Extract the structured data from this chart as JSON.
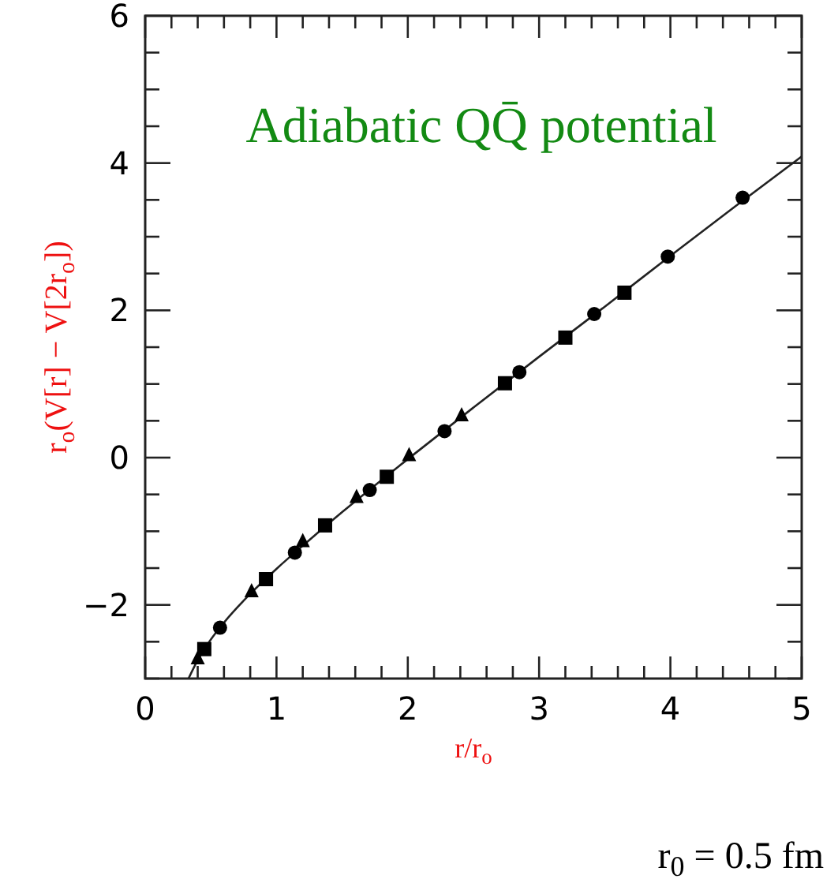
{
  "chart_data": {
    "type": "scatter",
    "title": "Adiabatic QQ̄ potential",
    "xlabel": "r/r$_{o}$",
    "ylabel": "r$_{o}$(V[r] − V[2r$_{o}$])",
    "annotations": [
      "r$_{0}$ = 0.5 fm"
    ],
    "xlim": [
      0,
      5
    ],
    "ylim": [
      -3,
      6
    ],
    "xticks": [
      0,
      {
        "value": 0.2,
        "label": null
      },
      {
        "value": 0.4,
        "label": null
      },
      {
        "value": 0.6,
        "label": null
      },
      {
        "value": 0.8,
        "label": null
      },
      1,
      {
        "value": 1.2,
        "label": null
      },
      {
        "value": 1.4,
        "label": null
      },
      {
        "value": 1.6,
        "label": null
      },
      {
        "value": 1.8,
        "label": null
      },
      2,
      {
        "value": 2.2,
        "label": null
      },
      {
        "value": 2.4,
        "label": null
      },
      {
        "value": 2.6,
        "label": null
      },
      {
        "value": 2.8,
        "label": null
      },
      3,
      {
        "value": 3.2,
        "label": null
      },
      {
        "value": 3.4,
        "label": null
      },
      {
        "value": 3.6,
        "label": null
      },
      {
        "value": 3.8,
        "label": null
      },
      4,
      {
        "value": 4.2,
        "label": null
      },
      {
        "value": 4.4,
        "label": null
      },
      {
        "value": 4.6,
        "label": null
      },
      {
        "value": 4.8,
        "label": null
      },
      5
    ],
    "yticks": [
      {
        "value": -3,
        "label": null
      },
      {
        "value": -2.5,
        "label": null
      },
      -2,
      {
        "value": -1.5,
        "label": null
      },
      {
        "value": -1,
        "label": null
      },
      {
        "value": -0.5,
        "label": null
      },
      0,
      {
        "value": 0.5,
        "label": null
      },
      {
        "value": 1,
        "label": null
      },
      {
        "value": 1.5,
        "label": null
      },
      2,
      {
        "value": 2.5,
        "label": null
      },
      {
        "value": 3,
        "label": null
      },
      {
        "value": 3.5,
        "label": null
      },
      4,
      {
        "value": 4.5,
        "label": null
      },
      {
        "value": 5,
        "label": null
      },
      {
        "value": 5.5,
        "label": null
      },
      6
    ],
    "series": [
      {
        "type": "line",
        "color": "#222222",
        "marker": "none",
        "x": [
          0.33,
          0.4,
          0.5,
          0.6,
          0.8,
          1,
          1.25,
          1.5,
          2,
          2.5,
          3,
          3.5,
          4,
          4.5,
          5
        ],
        "values": [
          -3.0,
          -2.75,
          -2.47,
          -2.24,
          -1.85,
          -1.51,
          -1.12,
          -0.74,
          -0.02,
          0.68,
          1.37,
          2.05,
          2.74,
          3.42,
          4.09
        ]
      },
      {
        "type": "scatter",
        "color": "#000000",
        "marker": "circle",
        "x": [
          0.57,
          1.14,
          1.71,
          2.28,
          2.85,
          3.42,
          3.98,
          4.55
        ],
        "values": [
          -2.31,
          -1.29,
          -0.44,
          0.36,
          1.16,
          1.95,
          2.73,
          3.53
        ]
      },
      {
        "type": "scatter",
        "color": "#000000",
        "marker": "square",
        "x": [
          0.45,
          0.92,
          1.37,
          1.84,
          2.74,
          3.2,
          3.65
        ],
        "values": [
          -2.6,
          -1.65,
          -0.92,
          -0.26,
          1.01,
          1.63,
          2.24
        ]
      },
      {
        "type": "scatter",
        "color": "#000000",
        "marker": "triangle",
        "x": [
          0.4,
          0.81,
          1.2,
          1.61,
          2.01,
          2.41
        ],
        "values": [
          -2.73,
          -1.82,
          -1.14,
          -0.54,
          0.03,
          0.57
        ]
      }
    ]
  }
}
